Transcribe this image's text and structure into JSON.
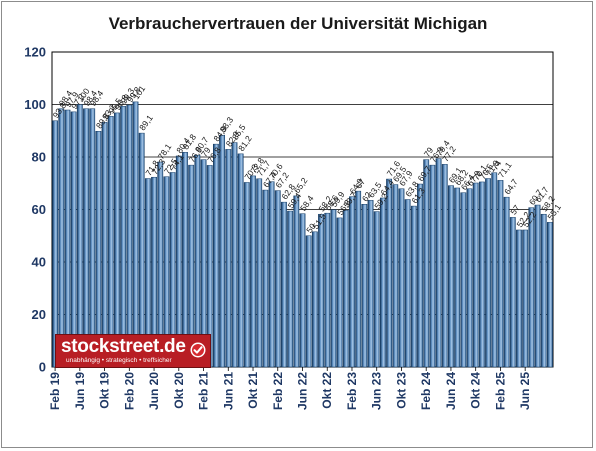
{
  "chart_data": {
    "type": "bar",
    "title": "Verbrauchervertrauen der Universität Michigan",
    "xlabel": "",
    "ylabel": "",
    "ylim": [
      0,
      120
    ],
    "yticks": [
      0,
      20,
      40,
      60,
      80,
      100,
      120
    ],
    "grid": true,
    "legend": "none",
    "bar_color": "#7ba7d4",
    "bar_dark": "#123a63",
    "axis_color": "#1f3864",
    "x_ticks": [
      "Feb 19",
      "Jun 19",
      "Okt 19",
      "Feb 20",
      "Jun 20",
      "Okt 20",
      "Feb 21",
      "Jun 21",
      "Okt 21",
      "Feb 22",
      "Jun 22",
      "Okt 22",
      "Feb 23",
      "Jun 23",
      "Okt 23",
      "Feb 24",
      "Jun 24",
      "Okt 24",
      "Feb 25",
      "Jun 25"
    ],
    "x_tick_index": [
      0,
      4,
      8,
      12,
      16,
      20,
      24,
      28,
      32,
      36,
      40,
      44,
      48,
      52,
      56,
      60,
      64,
      68,
      72,
      76
    ],
    "categories": [
      "01/19",
      "02/19",
      "03/19",
      "04/19",
      "05/19",
      "06/19",
      "07/19",
      "08/19",
      "09/19",
      "10/19",
      "11/19",
      "12/19",
      "01/20",
      "02/20",
      "03/20",
      "04/20",
      "05/20",
      "06/20",
      "07/20",
      "08/20",
      "09/20",
      "10/20",
      "11/20",
      "12/20",
      "01/21",
      "02/21",
      "03/21",
      "04/21",
      "05/21",
      "06/21",
      "07/21",
      "08/21",
      "09/21",
      "10/21",
      "11/21",
      "12/21",
      "01/22",
      "02/22",
      "03/22",
      "04/22",
      "05/22",
      "06/22",
      "07/22",
      "08/22",
      "09/22",
      "10/22",
      "11/22",
      "12/22",
      "01/23",
      "02/23",
      "03/23",
      "04/23",
      "05/23",
      "06/23",
      "07/23",
      "08/23",
      "09/23",
      "10/23",
      "11/23",
      "12/23",
      "01/24",
      "02/24",
      "03/24",
      "04/24",
      "05/24",
      "06/24",
      "07/24",
      "08/24",
      "09/24",
      "10/24",
      "11/24",
      "12/24",
      "01/25",
      "02/25",
      "03/25",
      "04/25",
      "05/25",
      "06/25",
      "07/25",
      "08/25",
      "09/25"
    ],
    "values": [
      93.8,
      98.4,
      97.9,
      97.2,
      100,
      98.4,
      98.4,
      89.8,
      93.2,
      95.5,
      96.8,
      99.3,
      99.8,
      101,
      89.1,
      71.8,
      72.3,
      78.1,
      72.5,
      74.1,
      80.4,
      81.8,
      76.9,
      80.7,
      79,
      76.8,
      84.9,
      88.3,
      82.9,
      85.5,
      81.2,
      70.3,
      72.8,
      71.7,
      67.4,
      70.6,
      67.2,
      62.8,
      59.4,
      65.2,
      58.4,
      50,
      51.5,
      58.2,
      58.6,
      59.9,
      56.8,
      59.7,
      64.9,
      67,
      62,
      63.5,
      59.2,
      64.4,
      71.6,
      69.5,
      67.9,
      63.8,
      61.3,
      69.7,
      79,
      76.9,
      79.4,
      77.2,
      69.1,
      68.2,
      66.4,
      67.9,
      70.1,
      70.5,
      71.8,
      74,
      71.1,
      64.7,
      57,
      52.2,
      52.2,
      60.7,
      61.7,
      58.2,
      55.1
    ],
    "data_labels": [
      "93,8",
      "98,4",
      "97,9",
      "97,2",
      "100",
      "98,4",
      "98,4",
      "89,8",
      "93,2",
      "95,5",
      "96,8",
      "99,3",
      "99,8",
      "101",
      "89,1",
      "71,8",
      "72,3",
      "78,1",
      "72,5",
      "74,1",
      "80,4",
      "81,8",
      "76,9",
      "80,7",
      "79",
      "76,8",
      "84,9",
      "88,3",
      "82,9",
      "85,5",
      "81,2",
      "70,3",
      "72,8",
      "71,7",
      "67,4",
      "70,6",
      "67,2",
      "62,8",
      "59,4",
      "65,2",
      "58,4",
      "50",
      "51,5",
      "58,2",
      "58,6",
      "59,9",
      "56,8",
      "59,7",
      "64,9",
      "67",
      "62",
      "63,5",
      "59,2",
      "64,4",
      "71,6",
      "69,5",
      "67,9",
      "63,8",
      "61,3",
      "69,7",
      "79",
      "76,9",
      "79,4",
      "77,2",
      "69,1",
      "68,2",
      "66,4",
      "67,9",
      "70,1",
      "70,5",
      "71,8",
      "74",
      "71,1",
      "64,7",
      "57",
      "52,2",
      "52,2",
      "60,7",
      "61,7",
      "58,2",
      "55,1"
    ]
  },
  "logo": {
    "name": "stockstreet.de",
    "tagline": "unabhängig • strategisch • treffsicher",
    "brand_color": "#b81e24"
  }
}
